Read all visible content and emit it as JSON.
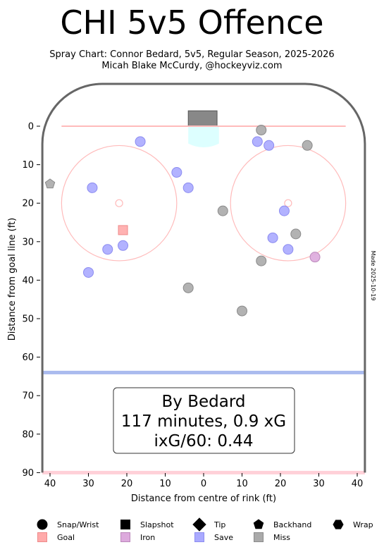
{
  "title": "CHI 5v5 Offence",
  "subtitle_line1": "Spray Chart: Connor Bedard, 5v5, Regular Season, 2025-2026",
  "subtitle_line2": "Micah Blake McCurdy, @hockeyviz.com",
  "side_note": "Made 2025-10-19",
  "summary_box": {
    "line1": "By Bedard",
    "line2": "117 minutes, 0.9 xG",
    "line3": "ixG/60: 0.44"
  },
  "chart_data": {
    "type": "scatter",
    "xlabel": "Distance from centre of rink (ft)",
    "ylabel": "Distance from goal line (ft)",
    "xlim": [
      42,
      -42
    ],
    "ylim": [
      90,
      -10
    ],
    "xticks": [
      40,
      30,
      20,
      10,
      0,
      10,
      20,
      30,
      40
    ],
    "yticks": [
      0,
      10,
      20,
      30,
      40,
      50,
      60,
      70,
      80,
      90
    ],
    "colors": {
      "save": "#aaaaff",
      "save_edge": "#8c8cf0",
      "miss": "#aaaaaa",
      "miss_edge": "#8a8a8a",
      "goal": "#ffaaaa",
      "goal_edge": "#ee8a8a",
      "iron": "#ddaadd",
      "iron_edge": "#bb88bb",
      "rink_line": "#666666",
      "goal_line": "#ffbbbb",
      "blue_line": "#aabbee",
      "crease": "#ddffff",
      "net": "#888888"
    },
    "points": [
      {
        "x": 16.5,
        "y": 4,
        "result": "save",
        "shot_type": "snap-wrist"
      },
      {
        "x": 7,
        "y": 12,
        "result": "save",
        "shot_type": "snap-wrist"
      },
      {
        "x": 29,
        "y": 16,
        "result": "save",
        "shot_type": "snap-wrist"
      },
      {
        "x": 4,
        "y": 16,
        "result": "save",
        "shot_type": "snap-wrist"
      },
      {
        "x": 25,
        "y": 32,
        "result": "save",
        "shot_type": "snap-wrist"
      },
      {
        "x": 21,
        "y": 31,
        "result": "save",
        "shot_type": "snap-wrist"
      },
      {
        "x": 30,
        "y": 38,
        "result": "save",
        "shot_type": "snap-wrist"
      },
      {
        "x": -14,
        "y": 4,
        "result": "save",
        "shot_type": "snap-wrist"
      },
      {
        "x": -17,
        "y": 5,
        "result": "save",
        "shot_type": "snap-wrist"
      },
      {
        "x": -21,
        "y": 22,
        "result": "save",
        "shot_type": "snap-wrist"
      },
      {
        "x": -18,
        "y": 29,
        "result": "save",
        "shot_type": "snap-wrist"
      },
      {
        "x": -22,
        "y": 32,
        "result": "save",
        "shot_type": "snap-wrist"
      },
      {
        "x": -15,
        "y": 1,
        "result": "miss",
        "shot_type": "snap-wrist"
      },
      {
        "x": -27,
        "y": 5,
        "result": "miss",
        "shot_type": "snap-wrist"
      },
      {
        "x": -5,
        "y": 22,
        "result": "miss",
        "shot_type": "snap-wrist"
      },
      {
        "x": -24,
        "y": 28,
        "result": "miss",
        "shot_type": "snap-wrist"
      },
      {
        "x": -15,
        "y": 35,
        "result": "miss",
        "shot_type": "snap-wrist"
      },
      {
        "x": 4,
        "y": 42,
        "result": "miss",
        "shot_type": "snap-wrist"
      },
      {
        "x": -10,
        "y": 48,
        "result": "miss",
        "shot_type": "snap-wrist"
      },
      {
        "x": 40,
        "y": 15,
        "result": "miss",
        "shot_type": "backhand"
      },
      {
        "x": 21,
        "y": 27,
        "result": "goal",
        "shot_type": "slapshot"
      },
      {
        "x": -29,
        "y": 34,
        "result": "iron",
        "shot_type": "snap-wrist"
      }
    ],
    "legend_shot_types": [
      {
        "label": "Snap/Wrist",
        "symbol": "circle"
      },
      {
        "label": "Slapshot",
        "symbol": "square"
      },
      {
        "label": "Tip",
        "symbol": "diamond"
      },
      {
        "label": "Backhand",
        "symbol": "pentagon"
      },
      {
        "label": "Wrap",
        "symbol": "hexagon"
      }
    ],
    "legend_results": [
      {
        "label": "Goal",
        "result": "goal"
      },
      {
        "label": "Iron",
        "result": "iron"
      },
      {
        "label": "Save",
        "result": "save"
      },
      {
        "label": "Miss",
        "result": "miss"
      }
    ]
  }
}
